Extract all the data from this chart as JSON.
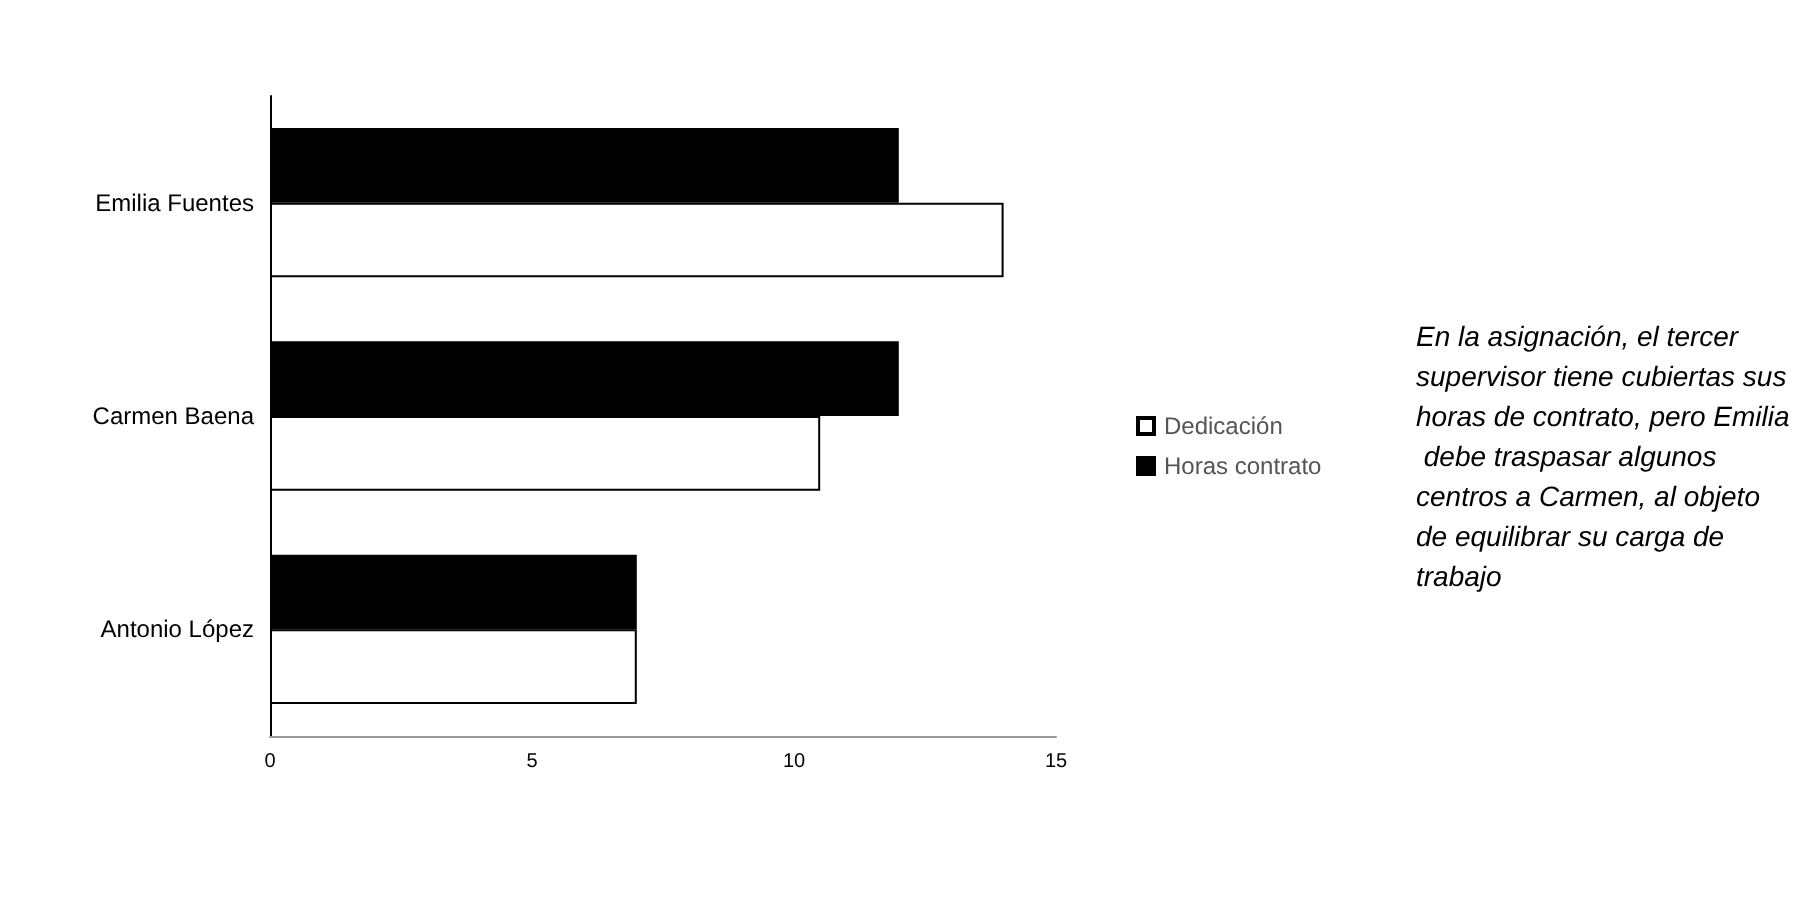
{
  "chart_data": {
    "type": "bar",
    "orientation": "horizontal",
    "categories": [
      "Emilia Fuentes",
      "Carmen Baena",
      "Antonio López"
    ],
    "series": [
      {
        "name": "Dedicación",
        "color": "#ffffff",
        "values": [
          14,
          10.5,
          7
        ]
      },
      {
        "name": "Horas contrato",
        "color": "#000000",
        "values": [
          12,
          12,
          7
        ]
      }
    ],
    "xlim": [
      0,
      15
    ],
    "xticks": [
      0,
      5,
      10,
      15
    ],
    "grid": false,
    "legend": "right",
    "annotations": [
      "En la asignación, el tercer supervisor tiene cubiertas sus horas de contrato, pero Emilia debe traspasar algunos centros a Carmen, al objeto de equilibrar su carga de trabajo"
    ]
  }
}
